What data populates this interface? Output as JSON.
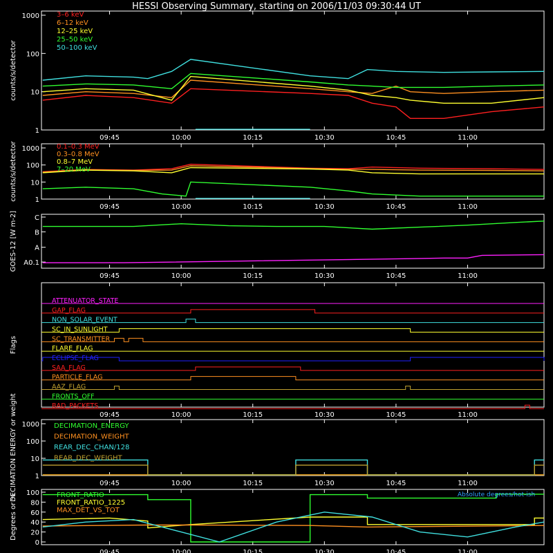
{
  "title": "HESSI Observing Summary, starting on 2006/11/03 09:30:44 UT",
  "time_axis": {
    "t_start": "09:30:44",
    "t_end": "11:16:00",
    "ticks": [
      "09:45",
      "10:00",
      "10:15",
      "10:30",
      "10:45",
      "11:00"
    ]
  },
  "colors": {
    "red": "#ff2020",
    "orange": "#ff9020",
    "yellow": "#ffff30",
    "green": "#30ff30",
    "cyan": "#40e0e0",
    "magenta": "#ff20ff",
    "blue": "#2020ff",
    "olive": "#c0a030",
    "white": "#ffffff"
  },
  "chart_data": [
    {
      "type": "line",
      "ylabel": "counts/s/detector",
      "yscale": "log",
      "ylim": [
        1,
        1000
      ],
      "yticks": [
        "1",
        "10",
        "100",
        "1000"
      ],
      "x_gaps": [
        [
          "10:03",
          "10:27"
        ]
      ],
      "series": [
        {
          "name": "3–6 keV",
          "color": "red",
          "x": [
            "09:31",
            "09:40",
            "09:50",
            "09:58",
            "10:02",
            "10:27",
            "10:35",
            "10:40",
            "10:45",
            "10:48",
            "10:55",
            "11:05",
            "11:16"
          ],
          "y": [
            6,
            8,
            7,
            5,
            12,
            9,
            8,
            5,
            4,
            2,
            2,
            3,
            4
          ]
        },
        {
          "name": "6–12 keV",
          "color": "orange",
          "x": [
            "09:31",
            "09:40",
            "09:50",
            "09:58",
            "10:02",
            "10:27",
            "10:35",
            "10:40",
            "10:45",
            "10:48",
            "10:55",
            "11:05",
            "11:16"
          ],
          "y": [
            8,
            10,
            9,
            7,
            20,
            12,
            10,
            9,
            14,
            10,
            9,
            10,
            11
          ]
        },
        {
          "name": "12–25 keV",
          "color": "yellow",
          "x": [
            "09:31",
            "09:40",
            "09:50",
            "09:58",
            "10:02",
            "10:27",
            "10:35",
            "10:40",
            "10:45",
            "10:48",
            "10:55",
            "11:05",
            "11:16"
          ],
          "y": [
            10,
            12,
            11,
            6,
            25,
            14,
            11,
            8,
            7,
            6,
            5,
            5,
            7
          ]
        },
        {
          "name": "25–50 keV",
          "color": "green",
          "x": [
            "09:31",
            "09:40",
            "09:50",
            "09:58",
            "10:02",
            "10:27",
            "10:35",
            "10:40",
            "10:45",
            "10:48",
            "10:55",
            "11:05",
            "11:16"
          ],
          "y": [
            14,
            16,
            15,
            12,
            30,
            18,
            15,
            14,
            13,
            13,
            13,
            14,
            15
          ]
        },
        {
          "name": "50–100 keV",
          "color": "cyan",
          "x": [
            "09:31",
            "09:40",
            "09:50",
            "09:53",
            "09:58",
            "10:02",
            "10:27",
            "10:35",
            "10:39",
            "10:45",
            "10:55",
            "11:05",
            "11:16"
          ],
          "y": [
            20,
            26,
            24,
            22,
            34,
            70,
            26,
            22,
            38,
            34,
            32,
            33,
            34
          ]
        }
      ]
    },
    {
      "type": "line",
      "ylabel": "counts/s/detector",
      "yscale": "log",
      "ylim": [
        1,
        1000
      ],
      "yticks": [
        "1",
        "10",
        "100",
        "1000"
      ],
      "x_gaps": [
        [
          "10:03",
          "10:27"
        ]
      ],
      "series": [
        {
          "name": "0.1–0.3 MeV",
          "color": "red",
          "x": [
            "09:31",
            "09:40",
            "09:50",
            "09:58",
            "10:02",
            "10:27",
            "10:35",
            "10:40",
            "10:50",
            "11:05",
            "11:16"
          ],
          "y": [
            40,
            55,
            50,
            60,
            110,
            65,
            60,
            75,
            65,
            60,
            55
          ]
        },
        {
          "name": "0.3–0.8 MeV",
          "color": "orange",
          "x": [
            "09:31",
            "09:40",
            "09:50",
            "09:58",
            "10:02",
            "10:27",
            "10:35",
            "10:40",
            "10:50",
            "11:05",
            "11:16"
          ],
          "y": [
            38,
            52,
            48,
            50,
            90,
            62,
            55,
            55,
            50,
            48,
            45
          ]
        },
        {
          "name": "0.8–7 MeV",
          "color": "yellow",
          "x": [
            "09:31",
            "09:40",
            "09:50",
            "09:58",
            "10:02",
            "10:27",
            "10:35",
            "10:40",
            "10:50",
            "11:05",
            "11:16"
          ],
          "y": [
            35,
            50,
            45,
            35,
            70,
            58,
            50,
            35,
            30,
            30,
            30
          ]
        },
        {
          "name": "7–20 MeV",
          "color": "green",
          "x": [
            "09:31",
            "09:40",
            "09:50",
            "09:56",
            "10:01",
            "10:02",
            "10:27",
            "10:35",
            "10:40",
            "10:50",
            "11:05",
            "11:16"
          ],
          "y": [
            4,
            5,
            4,
            2,
            1.5,
            10,
            5,
            3,
            2,
            1.5,
            1.5,
            1.5
          ]
        }
      ]
    },
    {
      "type": "line",
      "ylabel": "GOES-12 [W m-2]",
      "yticks": [
        "A0.1",
        "A",
        "B",
        "C"
      ],
      "series": [
        {
          "color": "green",
          "x": [
            "09:31",
            "09:50",
            "10:00",
            "10:10",
            "10:20",
            "10:30",
            "10:40",
            "10:50",
            "11:00",
            "11:10",
            "11:16"
          ],
          "y": [
            5.6,
            5.6,
            6.0,
            5.7,
            5.6,
            5.6,
            5.2,
            5.5,
            5.8,
            6.2,
            6.4
          ]
        },
        {
          "color": "magenta",
          "x": [
            "09:31",
            "09:48",
            "10:48",
            "10:55",
            "11:00",
            "11:03",
            "11:16"
          ],
          "y": [
            0.2,
            0.2,
            0.8,
            0.9,
            0.9,
            1.3,
            1.4
          ]
        }
      ]
    },
    {
      "type": "flags",
      "ylabel": "Flags",
      "flags": [
        {
          "name": "ATTENUATOR_STATE",
          "color": "magenta",
          "on": []
        },
        {
          "name": "GAP_FLAG",
          "color": "red",
          "on": [
            [
              "10:02",
              "10:28"
            ]
          ]
        },
        {
          "name": "NON_SOLAR_EVENT",
          "color": "cyan",
          "on": [
            [
              "10:01",
              "10:03"
            ]
          ]
        },
        {
          "name": "SC_IN_SUNLIGHT",
          "color": "yellow",
          "on": [
            [
              "09:47",
              "10:48"
            ]
          ]
        },
        {
          "name": "SC_TRANSMITTER",
          "color": "orange",
          "on": [
            [
              "09:46",
              "09:48"
            ],
            [
              "09:49",
              "09:52"
            ]
          ]
        },
        {
          "name": "FLARE_FLAG",
          "color": "yellow",
          "on": []
        },
        {
          "name": "ECLIPSE_FLAG",
          "color": "blue",
          "on": [
            [
              "09:31",
              "09:47"
            ],
            [
              "10:48",
              "11:16"
            ]
          ]
        },
        {
          "name": "SAA_FLAG",
          "color": "red",
          "on": [
            [
              "10:03",
              "10:25"
            ]
          ]
        },
        {
          "name": "PARTICLE_FLAG",
          "color": "orange",
          "on": [
            [
              "10:02",
              "10:24"
            ]
          ]
        },
        {
          "name": "AAZ_FLAG",
          "color": "olive",
          "on": [
            [
              "09:46",
              "09:47"
            ],
            [
              "10:47",
              "10:48"
            ]
          ]
        },
        {
          "name": "FRONTS_OFF",
          "color": "green",
          "on": []
        },
        {
          "name": "BAD_PACKETS",
          "color": "red",
          "on": [
            [
              "11:12",
              "11:13"
            ]
          ]
        }
      ]
    },
    {
      "type": "line",
      "ylabel": "DECIMATION ENERGY or weight",
      "yscale": "log",
      "ylim": [
        1,
        1000
      ],
      "yticks": [
        "1",
        "10",
        "100",
        "1000"
      ],
      "series": [
        {
          "name": "DECIMATION_ENERGY",
          "color": "green",
          "x": [
            "09:31",
            "11:16"
          ],
          "y": [
            0,
            0
          ]
        },
        {
          "name": "DECIMATION_WEIGHT",
          "color": "orange",
          "x": [
            "09:31",
            "11:16"
          ],
          "y": [
            0,
            0
          ]
        },
        {
          "name": "REAR_DEC_CHAN/128",
          "color": "cyan",
          "x": [
            "09:31",
            "09:53",
            "09:53",
            "10:24",
            "10:24",
            "10:39",
            "10:39",
            "11:14",
            "11:14",
            "11:16"
          ],
          "y": [
            8,
            8,
            1,
            1,
            8,
            8,
            1,
            1,
            8,
            8
          ]
        },
        {
          "name": "REAR_DEC_WEIGHT",
          "color": "olive",
          "x": [
            "09:31",
            "09:53",
            "09:53",
            "10:24",
            "10:24",
            "10:39",
            "10:39",
            "11:14",
            "11:14",
            "11:16"
          ],
          "y": [
            4,
            4,
            1,
            1,
            4,
            4,
            1,
            1,
            4,
            4
          ]
        }
      ]
    },
    {
      "type": "line",
      "ylabel": "Degrees or %",
      "ylim": [
        0,
        100
      ],
      "yticks": [
        "0",
        "20",
        "40",
        "60",
        "80",
        "100"
      ],
      "annotation": "Absolute degrees/hot-ish",
      "series": [
        {
          "name": "FRONT_RATIO",
          "color": "green",
          "x": [
            "09:31",
            "09:53",
            "09:53",
            "10:02",
            "10:02",
            "10:27",
            "10:27",
            "10:39",
            "10:39",
            "11:06",
            "11:06",
            "11:16"
          ],
          "y": [
            95,
            95,
            85,
            85,
            0,
            0,
            95,
            95,
            88,
            88,
            96,
            96
          ]
        },
        {
          "name": "FRONT_RATIO_1225",
          "color": "yellow",
          "x": [
            "09:31",
            "09:45",
            "09:53",
            "09:53",
            "10:02",
            "10:27",
            "10:39",
            "10:39",
            "11:14",
            "11:14",
            "11:16"
          ],
          "y": [
            45,
            48,
            42,
            28,
            35,
            50,
            50,
            35,
            35,
            48,
            48
          ]
        },
        {
          "name": "MAX_DET_VS_TOT",
          "color": "orange",
          "x": [
            "09:31",
            "09:53",
            "10:02",
            "10:27",
            "10:39",
            "11:16"
          ],
          "y": [
            32,
            34,
            34,
            33,
            30,
            33
          ]
        },
        {
          "color": "cyan",
          "x": [
            "09:31",
            "09:40",
            "09:50",
            "10:00",
            "10:08",
            "10:20",
            "10:30",
            "10:40",
            "10:50",
            "11:00",
            "11:10",
            "11:16"
          ],
          "y": [
            30,
            40,
            45,
            20,
            0,
            40,
            60,
            50,
            20,
            10,
            30,
            40
          ]
        }
      ]
    }
  ]
}
